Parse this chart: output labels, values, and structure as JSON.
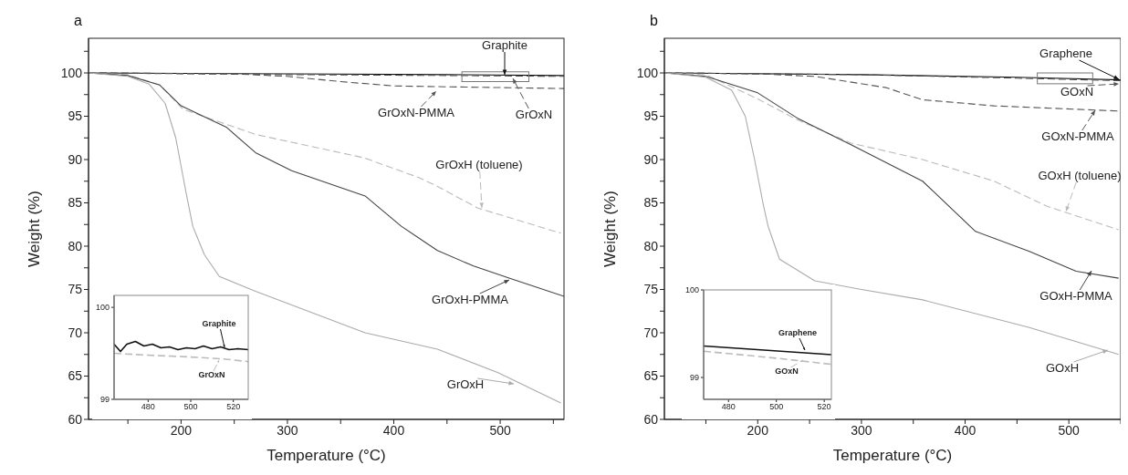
{
  "chart_data": [
    {
      "type": "line",
      "title": "a",
      "xlabel": "Temperature (°C)",
      "ylabel": "Weight (%)",
      "xlim": [
        113,
        560
      ],
      "ylim": [
        60,
        104
      ],
      "xticks": [
        {
          "value": 150,
          "label": null
        },
        200,
        {
          "value": 250,
          "label": null
        },
        300,
        {
          "value": 350,
          "label": null
        },
        400,
        {
          "value": 450,
          "label": null
        },
        500,
        {
          "value": 550,
          "label": null
        }
      ],
      "yticks": [
        60,
        {
          "value": 62.5,
          "label": null
        },
        65,
        {
          "value": 67.5,
          "label": null
        },
        70,
        {
          "value": 72.5,
          "label": null
        },
        75,
        {
          "value": 77.5,
          "label": null
        },
        80,
        {
          "value": 82.5,
          "label": null
        },
        85,
        {
          "value": 87.5,
          "label": null
        },
        90,
        {
          "value": 92.5,
          "label": null
        },
        95,
        {
          "value": 97.5,
          "label": null
        },
        100,
        {
          "value": 102.5,
          "label": null
        }
      ],
      "grid": false,
      "legend": "right",
      "marker": "none",
      "series": [
        {
          "name": "Graphite",
          "color": "#111111",
          "line_style": "solid",
          "x": [
            113,
            300,
            450,
            560
          ],
          "values": [
            100,
            99.9,
            99.8,
            99.7
          ]
        },
        {
          "name": "GrOxN",
          "color": "#555555",
          "line_style": "dashed",
          "x": [
            113,
            300,
            450,
            560
          ],
          "values": [
            100,
            99.8,
            99.7,
            99.6
          ]
        },
        {
          "name": "GrOxN-PMMA",
          "color": "#555555",
          "line_style": "dashed",
          "x": [
            113,
            250,
            300,
            350,
            400,
            450,
            560
          ],
          "values": [
            100,
            99.9,
            99.6,
            99,
            98.5,
            98.4,
            98.2
          ]
        },
        {
          "name": "GrOxH (toluene)",
          "color": "#bbbbbb",
          "line_style": "dashed",
          "x": [
            113,
            150,
            180,
            202,
            270,
            372,
            424,
            441,
            479,
            557
          ],
          "values": [
            100,
            99.8,
            98.6,
            95.8,
            92.9,
            90.2,
            87.9,
            86.9,
            84.4,
            81.5
          ]
        },
        {
          "name": "GrOxH-PMMA",
          "color": "#444444",
          "line_style": "solid",
          "x": [
            113,
            150,
            180,
            200,
            243,
            270,
            304,
            373,
            407,
            441,
            475,
            509,
            560
          ],
          "values": [
            100,
            99.7,
            98.6,
            96.2,
            93.7,
            90.8,
            88.7,
            85.8,
            82.3,
            79.5,
            77.7,
            76.3,
            74.2
          ]
        },
        {
          "name": "GrOxH",
          "color": "#aaaaaa",
          "line_style": "solid",
          "x": [
            113,
            150,
            170,
            185,
            195,
            205,
            211,
            222,
            236,
            270,
            373,
            441,
            498,
            557
          ],
          "values": [
            100,
            99.6,
            98.7,
            96.5,
            92.5,
            86,
            82.3,
            79,
            76.5,
            74.8,
            70,
            68.1,
            65.4,
            61.9
          ]
        }
      ]
    },
    {
      "type": "line",
      "xlim": [
        464,
        527
      ],
      "ylim": [
        99,
        100.13
      ],
      "xticks": [
        480,
        500,
        520
      ],
      "yticks": [
        99,
        100
      ],
      "grid": false,
      "legend": "right",
      "marker": "none",
      "series": [
        {
          "name": "Graphite",
          "color": "#111111",
          "line_style": "solid",
          "x": [
            464,
            467,
            470,
            474,
            478,
            482,
            486,
            490,
            494,
            498,
            502,
            506,
            510,
            514,
            518,
            522,
            527
          ],
          "values": [
            99.6,
            99.52,
            99.6,
            99.63,
            99.58,
            99.6,
            99.56,
            99.57,
            99.54,
            99.56,
            99.55,
            99.58,
            99.55,
            99.57,
            99.54,
            99.55,
            99.54
          ]
        },
        {
          "name": "GrOxN",
          "color": "#bbbbbb",
          "line_style": "dashed",
          "x": [
            464,
            480,
            500,
            515,
            527
          ],
          "values": [
            99.5,
            99.48,
            99.46,
            99.44,
            99.41
          ]
        }
      ]
    },
    {
      "type": "line",
      "title": "b",
      "xlabel": "Temperature (°C)",
      "ylabel": "Weight (%)",
      "xlim": [
        110,
        550
      ],
      "ylim": [
        60,
        104
      ],
      "xticks": [
        {
          "value": 150,
          "label": null
        },
        200,
        {
          "value": 250,
          "label": null
        },
        300,
        {
          "value": 350,
          "label": null
        },
        400,
        {
          "value": 450,
          "label": null
        },
        500,
        {
          "value": 550,
          "label": null
        }
      ],
      "yticks": [
        60,
        {
          "value": 62.5,
          "label": null
        },
        65,
        {
          "value": 67.5,
          "label": null
        },
        70,
        {
          "value": 72.5,
          "label": null
        },
        75,
        {
          "value": 77.5,
          "label": null
        },
        80,
        {
          "value": 82.5,
          "label": null
        },
        85,
        {
          "value": 87.5,
          "label": null
        },
        90,
        {
          "value": 92.5,
          "label": null
        },
        95,
        {
          "value": 97.5,
          "label": null
        },
        100,
        {
          "value": 102.5,
          "label": null
        }
      ],
      "grid": false,
      "legend": "right",
      "marker": "none",
      "series": [
        {
          "name": "Graphene",
          "color": "#111111",
          "line_style": "solid",
          "x": [
            110,
            300,
            450,
            550
          ],
          "values": [
            100,
            99.8,
            99.5,
            99.2
          ]
        },
        {
          "name": "GOxN",
          "color": "#555555",
          "line_style": "dashed",
          "x": [
            110,
            300,
            450,
            550
          ],
          "values": [
            100,
            99.8,
            99.4,
            99.1
          ]
        },
        {
          "name": "GOxN-PMMA",
          "color": "#555555",
          "line_style": "dashed",
          "x": [
            110,
            200,
            255,
            324,
            359,
            428,
            548
          ],
          "values": [
            100,
            99.9,
            99.6,
            98.3,
            96.9,
            96.2,
            95.6
          ]
        },
        {
          "name": "GOxH (toluene)",
          "color": "#bbbbbb",
          "line_style": "dashed",
          "x": [
            110,
            150,
            200,
            238,
            290,
            359,
            428,
            479,
            548
          ],
          "values": [
            100,
            99.8,
            97,
            94.6,
            91.9,
            90,
            87.5,
            84.6,
            81.9
          ]
        },
        {
          "name": "GOxH-PMMA",
          "color": "#444444",
          "line_style": "solid",
          "x": [
            110,
            150,
            200,
            238,
            290,
            359,
            410,
            462,
            507,
            548
          ],
          "values": [
            100,
            99.6,
            97.7,
            94.8,
            91.7,
            87.5,
            81.7,
            79.4,
            77.1,
            76.3
          ]
        },
        {
          "name": "GOxH",
          "color": "#aaaaaa",
          "line_style": "solid",
          "x": [
            110,
            150,
            175,
            188,
            197,
            205,
            210,
            221,
            255,
            300,
            359,
            462,
            548
          ],
          "values": [
            100,
            99.5,
            98,
            95,
            90,
            85,
            82.3,
            78.5,
            76,
            75,
            73.8,
            70.6,
            67.5
          ]
        }
      ]
    },
    {
      "type": "line",
      "xlim": [
        469.6,
        523
      ],
      "ylim": [
        98.75,
        100
      ],
      "xticks": [
        480,
        500,
        520
      ],
      "yticks": [
        99,
        100
      ],
      "grid": false,
      "legend": "right",
      "marker": "none",
      "series": [
        {
          "name": "Graphene",
          "color": "#111111",
          "line_style": "solid",
          "x": [
            469.6,
            523
          ],
          "values": [
            99.36,
            99.26
          ]
        },
        {
          "name": "GOxN",
          "color": "#bbbbbb",
          "line_style": "dashed",
          "x": [
            469.6,
            500,
            523
          ],
          "values": [
            99.3,
            99.22,
            99.15
          ]
        }
      ]
    }
  ]
}
